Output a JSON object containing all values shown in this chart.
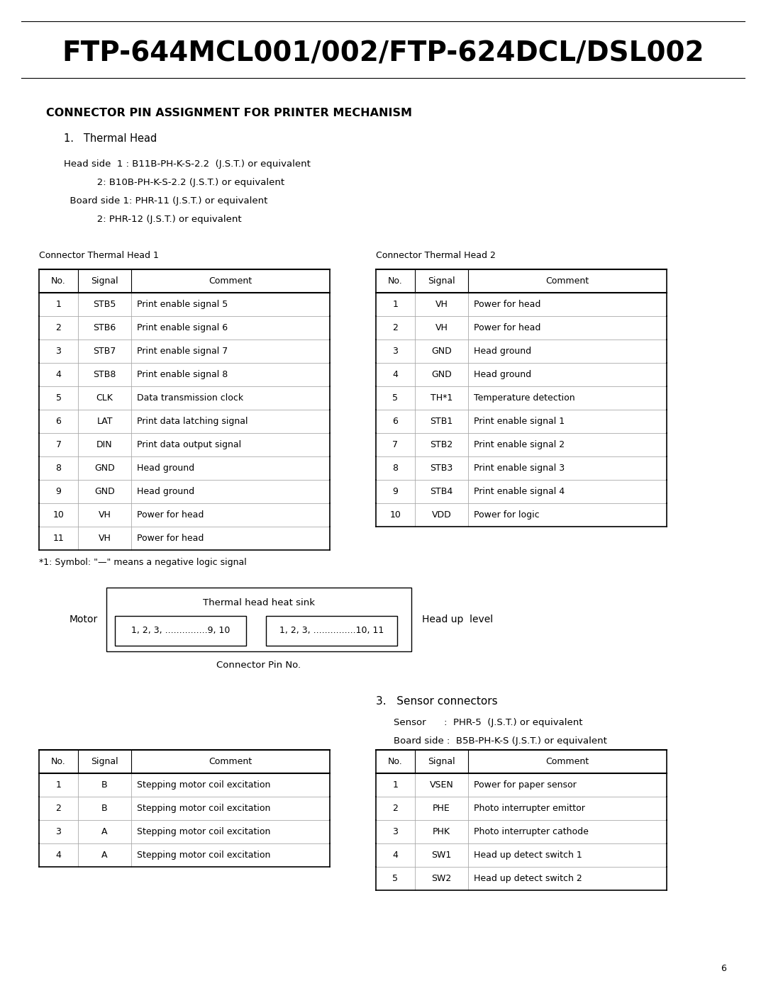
{
  "title": "FTP-644MCL001/002/FTP-624DCL/DSL002",
  "section_title": "CONNECTOR PIN ASSIGNMENT FOR PRINTER MECHANISM",
  "subsection1": "1.   Thermal Head",
  "head_line1": "Head side  1 : B11B-PH-K-S-2.2  (J.S.T.) or equivalent",
  "head_line2": "           2: B10B-PH-K-S-2.2 (J.S.T.) or equivalent",
  "head_line3": "  Board side 1: PHR-11 (J.S.T.) or equivalent",
  "head_line4": "           2: PHR-12 (J.S.T.) or equivalent",
  "connector1_label": "Connector Thermal Head 1",
  "connector2_label": "Connector Thermal Head 2",
  "table1_headers": [
    "No.",
    "Signal",
    "Comment"
  ],
  "table1_rows": [
    [
      "1",
      "STB5",
      "Print enable signal 5"
    ],
    [
      "2",
      "STB6",
      "Print enable signal 6"
    ],
    [
      "3",
      "STB7",
      "Print enable signal 7"
    ],
    [
      "4",
      "STB8",
      "Print enable signal 8"
    ],
    [
      "5",
      "CLK",
      "Data transmission clock"
    ],
    [
      "6",
      "LAT",
      "Print data latching signal"
    ],
    [
      "7",
      "DIN",
      "Print data output signal"
    ],
    [
      "8",
      "GND",
      "Head ground"
    ],
    [
      "9",
      "GND",
      "Head ground"
    ],
    [
      "10",
      "VH",
      "Power for head"
    ],
    [
      "11",
      "VH",
      "Power for head"
    ]
  ],
  "table2_headers": [
    "No.",
    "Signal",
    "Comment"
  ],
  "table2_rows": [
    [
      "1",
      "VH",
      "Power for head"
    ],
    [
      "2",
      "VH",
      "Power for head"
    ],
    [
      "3",
      "GND",
      "Head ground"
    ],
    [
      "4",
      "GND",
      "Head ground"
    ],
    [
      "5",
      "TH*1",
      "Temperature detection"
    ],
    [
      "6",
      "STB1",
      "Print enable signal 1"
    ],
    [
      "7",
      "STB2",
      "Print enable signal 2"
    ],
    [
      "8",
      "STB3",
      "Print enable signal 3"
    ],
    [
      "9",
      "STB4",
      "Print enable signal 4"
    ],
    [
      "10",
      "VDD",
      "Power for logic"
    ]
  ],
  "footnote": "*1: Symbol: \"—\" means a negative logic signal",
  "motor_label": "Motor",
  "head_up_label": "Head up  level",
  "thermal_sink_label": "Thermal head heat sink",
  "connector_pin_label": "Connector Pin No.",
  "box1_text": "1, 2, 3, ...............9, 10",
  "box2_text": "1, 2, 3, ...............10, 11",
  "section3_title": "3.   Sensor connectors",
  "sensor_line1": "Sensor      :  PHR-5  (J.S.T.) or equivalent",
  "sensor_line2": "Board side :  B5B-PH-K-S (J.S.T.) or equivalent",
  "motor_table_headers": [
    "No.",
    "Signal",
    "Comment"
  ],
  "motor_table_rows": [
    [
      "1",
      "B",
      "Stepping motor coil excitation"
    ],
    [
      "2",
      "B",
      "Stepping motor coil excitation"
    ],
    [
      "3",
      "A",
      "Stepping motor coil excitation"
    ],
    [
      "4",
      "A",
      "Stepping motor coil excitation"
    ]
  ],
  "sensor_table_headers": [
    "No.",
    "Signal",
    "Comment"
  ],
  "sensor_table_rows": [
    [
      "1",
      "VSEN",
      "Power for paper sensor"
    ],
    [
      "2",
      "PHE",
      "Photo interrupter emittor"
    ],
    [
      "3",
      "PHK",
      "Photo interrupter cathode"
    ],
    [
      "4",
      "SW1",
      "Head up detect switch 1"
    ],
    [
      "5",
      "SW2",
      "Head up detect switch 2"
    ]
  ],
  "page_number": "6",
  "bg_color": "#ffffff"
}
